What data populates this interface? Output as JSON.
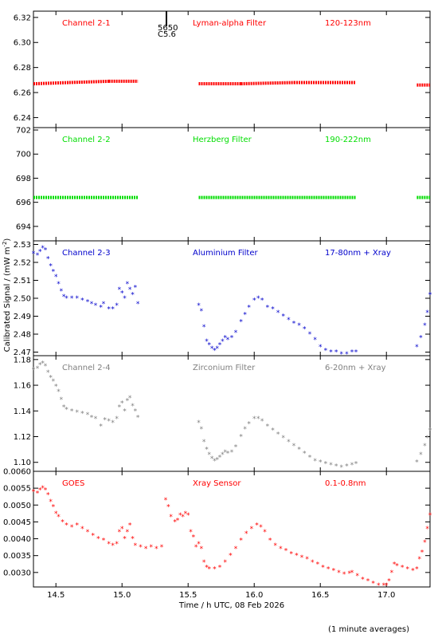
{
  "ylabel": "Calibrated Signal / (mW m",
  "ylabel_sup": "-2",
  "ylabel_end": ")",
  "xlabel": "Time / h UTC, 08 Feb 2026",
  "footnote": "(1 minute averages)",
  "overlay_text_1": "5650",
  "overlay_text_2": "C5.6",
  "chart_data": [
    {
      "type": "scatter",
      "labels": [
        "Channel 2-1",
        "Lyman-alpha Filter",
        "120-123nm"
      ],
      "color": "#ff0000",
      "marker": "dot",
      "xlim": [
        14.33,
        17.33
      ],
      "ylim": [
        6.232,
        6.325
      ],
      "xticks": [
        14.5,
        15.0,
        15.5,
        16.0,
        16.5,
        17.0
      ],
      "yticks": [
        6.24,
        6.26,
        6.28,
        6.3,
        6.32
      ],
      "ytick_labels": [
        "6.24",
        "6.26",
        "6.28",
        "6.30",
        "6.32"
      ],
      "segments": [
        {
          "x": [
            14.33,
            14.6,
            14.9,
            15.12
          ],
          "y": [
            6.267,
            6.268,
            6.269,
            6.269
          ]
        },
        {
          "x": [
            15.58,
            15.9,
            16.3,
            16.77
          ],
          "y": [
            6.267,
            6.267,
            6.268,
            6.268
          ]
        },
        {
          "x": [
            17.23,
            17.33
          ],
          "y": [
            6.266,
            6.266
          ]
        }
      ]
    },
    {
      "type": "scatter",
      "labels": [
        "Channel 2-2",
        "Herzberg Filter",
        "190-222nm"
      ],
      "color": "#00dd00",
      "marker": "dot",
      "xlim": [
        14.33,
        17.33
      ],
      "ylim": [
        692.8,
        702.2
      ],
      "xticks": [
        14.5,
        15.0,
        15.5,
        16.0,
        16.5,
        17.0
      ],
      "yticks": [
        694,
        696,
        698,
        700,
        702
      ],
      "ytick_labels": [
        "694",
        "696",
        "698",
        "700",
        "702"
      ],
      "segments": [
        {
          "x": [
            14.33,
            15.12
          ],
          "y": [
            696.4,
            696.4
          ]
        },
        {
          "x": [
            15.58,
            16.77
          ],
          "y": [
            696.4,
            696.4
          ]
        },
        {
          "x": [
            17.23,
            17.33
          ],
          "y": [
            696.4,
            696.4
          ]
        }
      ]
    },
    {
      "type": "scatter",
      "labels": [
        "Channel 2-3",
        "Aluminium Filter",
        "17-80nm + Xray"
      ],
      "color": "#0000cc",
      "marker": "star",
      "xlim": [
        14.33,
        17.33
      ],
      "ylim": [
        2.468,
        2.532
      ],
      "xticks": [
        14.5,
        15.0,
        15.5,
        16.0,
        16.5,
        17.0
      ],
      "yticks": [
        2.47,
        2.48,
        2.49,
        2.5,
        2.51,
        2.52,
        2.53
      ],
      "ytick_labels": [
        "2.47",
        "2.48",
        "2.49",
        "2.50",
        "2.51",
        "2.52",
        "2.53"
      ],
      "points": [
        [
          14.33,
          2.525
        ],
        [
          14.36,
          2.524
        ],
        [
          14.38,
          2.526
        ],
        [
          14.4,
          2.528
        ],
        [
          14.42,
          2.527
        ],
        [
          14.44,
          2.522
        ],
        [
          14.46,
          2.518
        ],
        [
          14.48,
          2.515
        ],
        [
          14.5,
          2.512
        ],
        [
          14.52,
          2.508
        ],
        [
          14.54,
          2.504
        ],
        [
          14.56,
          2.501
        ],
        [
          14.58,
          2.5
        ],
        [
          14.62,
          2.5
        ],
        [
          14.66,
          2.5
        ],
        [
          14.7,
          2.499
        ],
        [
          14.74,
          2.498
        ],
        [
          14.77,
          2.497
        ],
        [
          14.8,
          2.496
        ],
        [
          14.84,
          2.495
        ],
        [
          14.86,
          2.497
        ],
        [
          14.9,
          2.494
        ],
        [
          14.93,
          2.494
        ],
        [
          14.96,
          2.496
        ],
        [
          14.98,
          2.505
        ],
        [
          15.0,
          2.503
        ],
        [
          15.02,
          2.5
        ],
        [
          15.04,
          2.508
        ],
        [
          15.06,
          2.505
        ],
        [
          15.08,
          2.502
        ],
        [
          15.1,
          2.506
        ],
        [
          15.12,
          2.497
        ],
        [
          15.58,
          2.496
        ],
        [
          15.6,
          2.493
        ],
        [
          15.62,
          2.484
        ],
        [
          15.64,
          2.476
        ],
        [
          15.66,
          2.474
        ],
        [
          15.68,
          2.472
        ],
        [
          15.7,
          2.471
        ],
        [
          15.72,
          2.472
        ],
        [
          15.74,
          2.474
        ],
        [
          15.76,
          2.476
        ],
        [
          15.78,
          2.478
        ],
        [
          15.8,
          2.477
        ],
        [
          15.83,
          2.478
        ],
        [
          15.86,
          2.481
        ],
        [
          15.9,
          2.487
        ],
        [
          15.93,
          2.491
        ],
        [
          15.96,
          2.495
        ],
        [
          16.0,
          2.499
        ],
        [
          16.03,
          2.5
        ],
        [
          16.06,
          2.499
        ],
        [
          16.1,
          2.495
        ],
        [
          16.14,
          2.494
        ],
        [
          16.18,
          2.492
        ],
        [
          16.22,
          2.49
        ],
        [
          16.26,
          2.488
        ],
        [
          16.3,
          2.486
        ],
        [
          16.34,
          2.485
        ],
        [
          16.38,
          2.483
        ],
        [
          16.42,
          2.48
        ],
        [
          16.46,
          2.477
        ],
        [
          16.5,
          2.473
        ],
        [
          16.54,
          2.471
        ],
        [
          16.58,
          2.47
        ],
        [
          16.62,
          2.47
        ],
        [
          16.66,
          2.469
        ],
        [
          16.7,
          2.469
        ],
        [
          16.74,
          2.47
        ],
        [
          16.77,
          2.47
        ],
        [
          17.23,
          2.473
        ],
        [
          17.26,
          2.478
        ],
        [
          17.29,
          2.485
        ],
        [
          17.31,
          2.492
        ],
        [
          17.33,
          2.502
        ]
      ]
    },
    {
      "type": "scatter",
      "labels": [
        "Channel 2-4",
        "Zirconium Filter",
        "6-20nm + Xray"
      ],
      "color": "#808080",
      "marker": "star",
      "xlim": [
        14.33,
        17.33
      ],
      "ylim": [
        1.093,
        1.183
      ],
      "xticks": [
        14.5,
        15.0,
        15.5,
        16.0,
        16.5,
        17.0
      ],
      "yticks": [
        1.1,
        1.12,
        1.14,
        1.16,
        1.18
      ],
      "ytick_labels": [
        "1.10",
        "1.12",
        "1.14",
        "1.16",
        "1.18"
      ],
      "points": [
        [
          14.33,
          1.172
        ],
        [
          14.36,
          1.173
        ],
        [
          14.38,
          1.176
        ],
        [
          14.4,
          1.177
        ],
        [
          14.42,
          1.175
        ],
        [
          14.44,
          1.17
        ],
        [
          14.46,
          1.166
        ],
        [
          14.48,
          1.163
        ],
        [
          14.5,
          1.159
        ],
        [
          14.52,
          1.155
        ],
        [
          14.54,
          1.149
        ],
        [
          14.56,
          1.143
        ],
        [
          14.58,
          1.141
        ],
        [
          14.62,
          1.14
        ],
        [
          14.66,
          1.139
        ],
        [
          14.7,
          1.138
        ],
        [
          14.74,
          1.137
        ],
        [
          14.77,
          1.135
        ],
        [
          14.8,
          1.134
        ],
        [
          14.84,
          1.128
        ],
        [
          14.87,
          1.133
        ],
        [
          14.9,
          1.132
        ],
        [
          14.93,
          1.131
        ],
        [
          14.96,
          1.134
        ],
        [
          14.98,
          1.143
        ],
        [
          15.0,
          1.146
        ],
        [
          15.02,
          1.14
        ],
        [
          15.04,
          1.148
        ],
        [
          15.06,
          1.15
        ],
        [
          15.08,
          1.144
        ],
        [
          15.1,
          1.14
        ],
        [
          15.12,
          1.135
        ],
        [
          15.58,
          1.131
        ],
        [
          15.6,
          1.126
        ],
        [
          15.62,
          1.116
        ],
        [
          15.64,
          1.11
        ],
        [
          15.66,
          1.106
        ],
        [
          15.68,
          1.103
        ],
        [
          15.7,
          1.101
        ],
        [
          15.72,
          1.102
        ],
        [
          15.74,
          1.104
        ],
        [
          15.76,
          1.106
        ],
        [
          15.78,
          1.108
        ],
        [
          15.8,
          1.107
        ],
        [
          15.83,
          1.108
        ],
        [
          15.86,
          1.112
        ],
        [
          15.9,
          1.12
        ],
        [
          15.93,
          1.126
        ],
        [
          15.96,
          1.13
        ],
        [
          16.0,
          1.134
        ],
        [
          16.03,
          1.134
        ],
        [
          16.06,
          1.132
        ],
        [
          16.1,
          1.128
        ],
        [
          16.14,
          1.125
        ],
        [
          16.18,
          1.122
        ],
        [
          16.22,
          1.119
        ],
        [
          16.26,
          1.116
        ],
        [
          16.3,
          1.113
        ],
        [
          16.34,
          1.11
        ],
        [
          16.38,
          1.107
        ],
        [
          16.42,
          1.104
        ],
        [
          16.46,
          1.101
        ],
        [
          16.5,
          1.1
        ],
        [
          16.54,
          1.099
        ],
        [
          16.58,
          1.098
        ],
        [
          16.62,
          1.097
        ],
        [
          16.66,
          1.096
        ],
        [
          16.7,
          1.097
        ],
        [
          16.74,
          1.098
        ],
        [
          16.77,
          1.099
        ],
        [
          17.23,
          1.1
        ],
        [
          17.26,
          1.106
        ],
        [
          17.29,
          1.113
        ],
        [
          17.31,
          1.119
        ],
        [
          17.33,
          1.125
        ]
      ]
    },
    {
      "type": "scatter",
      "labels": [
        "GOES",
        "Xray Sensor",
        "0.1-0.8nm"
      ],
      "color": "#ff0000",
      "marker": "star",
      "xlim": [
        14.33,
        17.33
      ],
      "ylim": [
        0.00257,
        0.006
      ],
      "xticks": [
        14.5,
        15.0,
        15.5,
        16.0,
        16.5,
        17.0
      ],
      "xtick_labels": [
        "14.5",
        "15.0",
        "15.5",
        "16.0",
        "16.5",
        "17.0"
      ],
      "yticks": [
        0.003,
        0.0035,
        0.004,
        0.0045,
        0.005,
        0.0055,
        0.006
      ],
      "ytick_labels": [
        "0.0030",
        "0.0035",
        "0.0040",
        "0.0045",
        "0.0050",
        "0.0055",
        "0.0060"
      ],
      "points": [
        [
          14.33,
          0.0054
        ],
        [
          14.36,
          0.00535
        ],
        [
          14.38,
          0.00545
        ],
        [
          14.4,
          0.0055
        ],
        [
          14.42,
          0.00545
        ],
        [
          14.44,
          0.0053
        ],
        [
          14.46,
          0.0051
        ],
        [
          14.48,
          0.00495
        ],
        [
          14.5,
          0.00475
        ],
        [
          14.52,
          0.00465
        ],
        [
          14.55,
          0.0045
        ],
        [
          14.58,
          0.0044
        ],
        [
          14.62,
          0.00435
        ],
        [
          14.66,
          0.0044
        ],
        [
          14.7,
          0.0043
        ],
        [
          14.74,
          0.0042
        ],
        [
          14.78,
          0.0041
        ],
        [
          14.82,
          0.004
        ],
        [
          14.86,
          0.00395
        ],
        [
          14.9,
          0.00385
        ],
        [
          14.93,
          0.0038
        ],
        [
          14.96,
          0.00385
        ],
        [
          14.98,
          0.0042
        ],
        [
          15.0,
          0.0043
        ],
        [
          15.02,
          0.004
        ],
        [
          15.04,
          0.0042
        ],
        [
          15.06,
          0.0044
        ],
        [
          15.08,
          0.004
        ],
        [
          15.1,
          0.0038
        ],
        [
          15.14,
          0.00375
        ],
        [
          15.18,
          0.0037
        ],
        [
          15.22,
          0.00375
        ],
        [
          15.26,
          0.0037
        ],
        [
          15.3,
          0.00375
        ],
        [
          15.33,
          0.00515
        ],
        [
          15.35,
          0.00495
        ],
        [
          15.37,
          0.00465
        ],
        [
          15.4,
          0.0045
        ],
        [
          15.42,
          0.00455
        ],
        [
          15.44,
          0.0047
        ],
        [
          15.46,
          0.00465
        ],
        [
          15.48,
          0.00475
        ],
        [
          15.5,
          0.0047
        ],
        [
          15.52,
          0.0042
        ],
        [
          15.54,
          0.00405
        ],
        [
          15.56,
          0.00375
        ],
        [
          15.58,
          0.00385
        ],
        [
          15.6,
          0.0037
        ],
        [
          15.62,
          0.0033
        ],
        [
          15.64,
          0.00315
        ],
        [
          15.66,
          0.0031
        ],
        [
          15.7,
          0.0031
        ],
        [
          15.74,
          0.00315
        ],
        [
          15.78,
          0.0033
        ],
        [
          15.82,
          0.0035
        ],
        [
          15.86,
          0.0037
        ],
        [
          15.9,
          0.00395
        ],
        [
          15.94,
          0.00415
        ],
        [
          15.98,
          0.0043
        ],
        [
          16.02,
          0.0044
        ],
        [
          16.05,
          0.00435
        ],
        [
          16.08,
          0.0042
        ],
        [
          16.12,
          0.00395
        ],
        [
          16.16,
          0.0038
        ],
        [
          16.2,
          0.0037
        ],
        [
          16.24,
          0.00365
        ],
        [
          16.28,
          0.00355
        ],
        [
          16.32,
          0.0035
        ],
        [
          16.36,
          0.00345
        ],
        [
          16.4,
          0.0034
        ],
        [
          16.44,
          0.0033
        ],
        [
          16.48,
          0.00325
        ],
        [
          16.52,
          0.00315
        ],
        [
          16.56,
          0.0031
        ],
        [
          16.6,
          0.00305
        ],
        [
          16.64,
          0.003
        ],
        [
          16.68,
          0.00295
        ],
        [
          16.72,
          0.00297
        ],
        [
          16.74,
          0.00299
        ],
        [
          16.78,
          0.0029
        ],
        [
          16.82,
          0.0028
        ],
        [
          16.86,
          0.00275
        ],
        [
          16.9,
          0.00268
        ],
        [
          16.94,
          0.00262
        ],
        [
          16.98,
          0.00262
        ],
        [
          17.0,
          0.00262
        ],
        [
          17.02,
          0.00275
        ],
        [
          17.04,
          0.003
        ],
        [
          17.06,
          0.00325
        ],
        [
          17.08,
          0.0032
        ],
        [
          17.12,
          0.00315
        ],
        [
          17.16,
          0.0031
        ],
        [
          17.2,
          0.00305
        ],
        [
          17.23,
          0.0031
        ],
        [
          17.25,
          0.0034
        ],
        [
          17.27,
          0.0036
        ],
        [
          17.29,
          0.0039
        ],
        [
          17.31,
          0.0043
        ],
        [
          17.33,
          0.0047
        ]
      ]
    }
  ]
}
